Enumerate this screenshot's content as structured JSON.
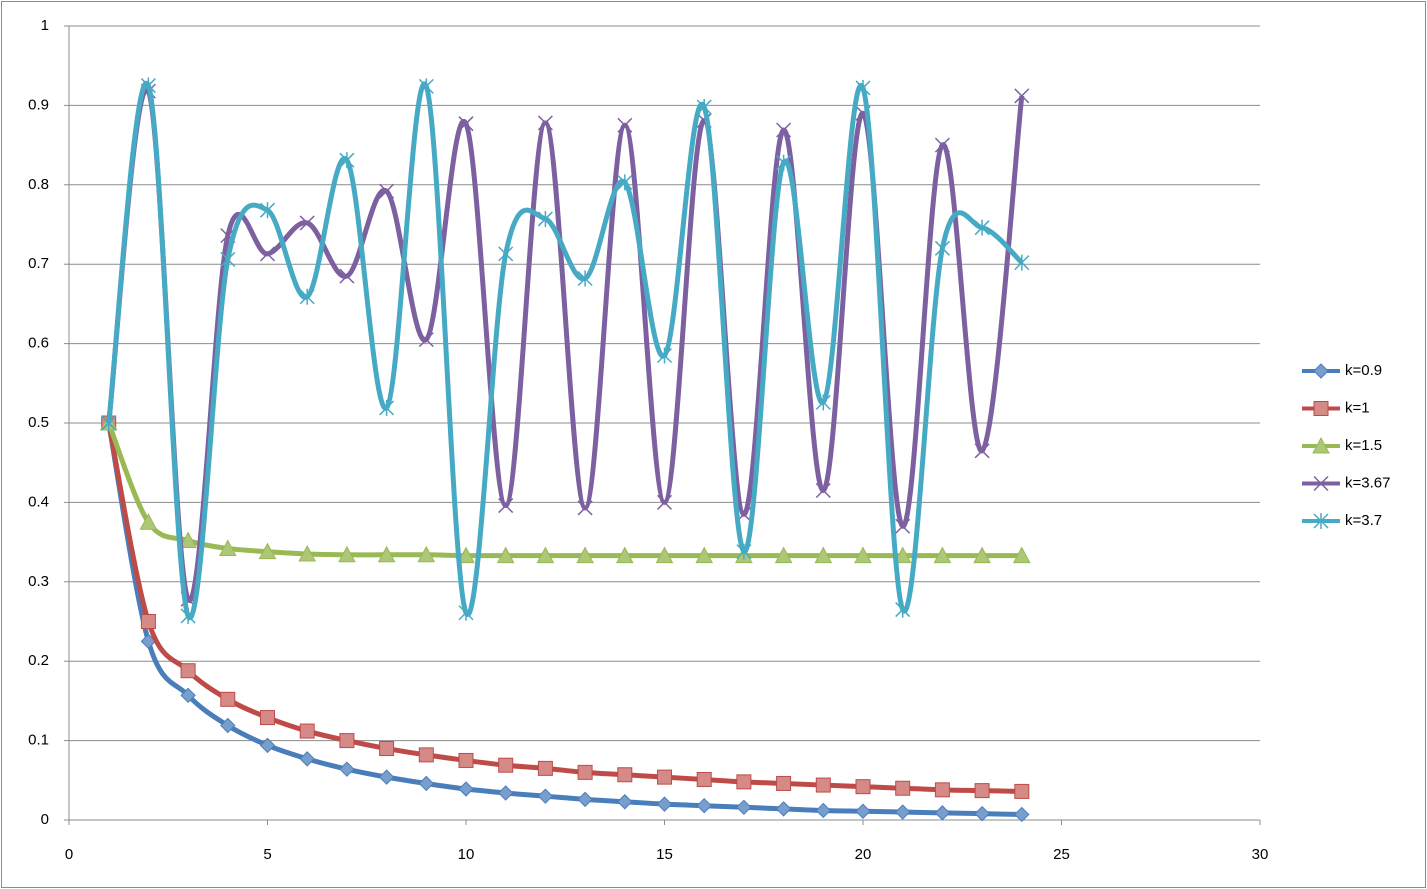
{
  "chart_data": {
    "type": "line",
    "smooth": true,
    "grid": true,
    "legend": "right",
    "x": [
      1,
      2,
      3,
      4,
      5,
      6,
      7,
      8,
      9,
      10,
      11,
      12,
      13,
      14,
      15,
      16,
      17,
      18,
      19,
      20,
      21,
      22,
      23,
      24
    ],
    "xlim": [
      0,
      30
    ],
    "xticks": [
      0,
      5,
      10,
      15,
      20,
      25,
      30
    ],
    "ylim": [
      0,
      1
    ],
    "yticks": [
      0,
      0.1,
      0.2,
      0.3,
      0.4,
      0.5,
      0.6,
      0.7,
      0.8,
      0.9,
      1
    ],
    "series": [
      {
        "name": "k=0.9",
        "color": "#4a7ebb",
        "marker": "diamond",
        "values": [
          0.5,
          0.225,
          0.157,
          0.119,
          0.094,
          0.077,
          0.064,
          0.054,
          0.046,
          0.039,
          0.034,
          0.03,
          0.026,
          0.023,
          0.02,
          0.018,
          0.016,
          0.014,
          0.012,
          0.011,
          0.01,
          0.009,
          0.008,
          0.007
        ]
      },
      {
        "name": "k=1",
        "color": "#be4b48",
        "marker": "square",
        "values": [
          0.5,
          0.25,
          0.188,
          0.152,
          0.129,
          0.112,
          0.1,
          0.09,
          0.082,
          0.075,
          0.069,
          0.065,
          0.06,
          0.057,
          0.054,
          0.051,
          0.048,
          0.046,
          0.044,
          0.042,
          0.04,
          0.038,
          0.037,
          0.036
        ]
      },
      {
        "name": "k=1.5",
        "color": "#98b954",
        "marker": "triangle",
        "values": [
          0.5,
          0.375,
          0.352,
          0.342,
          0.338,
          0.335,
          0.334,
          0.334,
          0.334,
          0.333,
          0.333,
          0.333,
          0.333,
          0.333,
          0.333,
          0.333,
          0.333,
          0.333,
          0.333,
          0.333,
          0.333,
          0.333,
          0.333,
          0.333
        ]
      },
      {
        "name": "k=3.67",
        "color": "#7d60a0",
        "marker": "x",
        "values": [
          0.5,
          0.918,
          0.278,
          0.736,
          0.713,
          0.752,
          0.685,
          0.792,
          0.605,
          0.877,
          0.396,
          0.878,
          0.393,
          0.875,
          0.4,
          0.881,
          0.385,
          0.869,
          0.415,
          0.89,
          0.37,
          0.85,
          0.465,
          0.912
        ]
      },
      {
        "name": "k=3.7",
        "color": "#46aac5",
        "marker": "star",
        "values": [
          0.5,
          0.925,
          0.257,
          0.706,
          0.768,
          0.659,
          0.831,
          0.519,
          0.924,
          0.261,
          0.713,
          0.757,
          0.682,
          0.803,
          0.585,
          0.898,
          0.338,
          0.828,
          0.526,
          0.922,
          0.265,
          0.72,
          0.746,
          0.702
        ]
      }
    ]
  }
}
